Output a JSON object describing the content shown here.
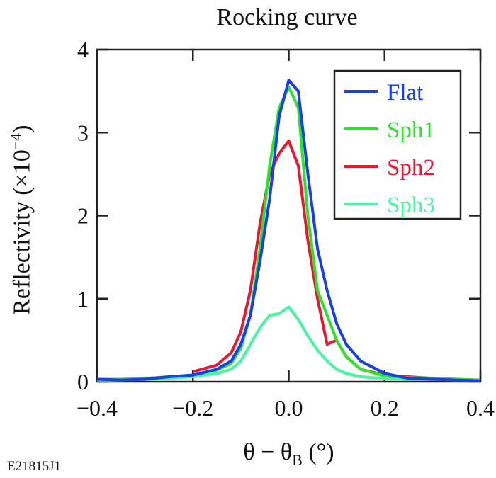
{
  "chart_data": {
    "type": "line",
    "title": "Rocking curve",
    "xlabel": {
      "main": "θ − θ",
      "sub": "B",
      "unit": " (°)"
    },
    "ylabel": {
      "main": "Reflectivity (×10",
      "sup": "−4",
      "end": ")"
    },
    "xlim": [
      -0.4,
      0.4
    ],
    "ylim": [
      0,
      4
    ],
    "xticks": [
      -0.4,
      -0.2,
      0.0,
      0.2,
      0.4
    ],
    "xtick_labels": [
      "−0.4",
      "−0.2",
      "0.0",
      "0.2",
      "0.4"
    ],
    "yticks": [
      0,
      1,
      2,
      3,
      4
    ],
    "ytick_labels": [
      "0",
      "1",
      "2",
      "3",
      "4"
    ],
    "grid": false,
    "legend_position": "top-right",
    "x": [
      -0.4,
      -0.35,
      -0.3,
      -0.25,
      -0.2,
      -0.15,
      -0.12,
      -0.1,
      -0.08,
      -0.06,
      -0.04,
      -0.02,
      0,
      0.02,
      0.04,
      0.06,
      0.08,
      0.1,
      0.12,
      0.15,
      0.2,
      0.25,
      0.3,
      0.35,
      0.4
    ],
    "series": [
      {
        "name": "Flat",
        "color": "#1a3fe6",
        "values": [
          0.03,
          0.02,
          0.03,
          0.06,
          0.08,
          0.15,
          0.25,
          0.45,
          0.8,
          1.45,
          2.2,
          3.2,
          3.63,
          3.5,
          2.5,
          1.6,
          1.1,
          0.7,
          0.45,
          0.25,
          0.1,
          0.04,
          0.03,
          0.02,
          0.01
        ]
      },
      {
        "name": "Sph1",
        "color": "#2fe02f",
        "values": [
          0.03,
          0.03,
          0.04,
          0.06,
          0.08,
          0.14,
          0.22,
          0.4,
          0.8,
          1.6,
          2.6,
          3.3,
          3.55,
          3.3,
          2.0,
          1.1,
          0.8,
          0.5,
          0.3,
          0.15,
          0.07,
          0.05,
          0.04,
          0.03,
          0.02
        ]
      },
      {
        "name": "Sph2",
        "color": "#e8182e",
        "values": [
          null,
          null,
          null,
          null,
          0.12,
          0.2,
          0.35,
          0.6,
          1.1,
          1.9,
          2.5,
          2.75,
          2.9,
          2.6,
          1.7,
          1.0,
          0.45,
          0.5,
          0.3,
          0.15,
          0.08,
          0.06,
          0.04,
          0.03,
          0.02
        ]
      },
      {
        "name": "Sph3",
        "color": "#45f5a0",
        "values": [
          0.02,
          0.02,
          0.03,
          0.04,
          0.06,
          0.1,
          0.15,
          0.25,
          0.45,
          0.65,
          0.8,
          0.82,
          0.9,
          0.75,
          0.55,
          0.38,
          0.25,
          0.15,
          0.1,
          0.06,
          0.04,
          0.03,
          0.03,
          0.02,
          0.02
        ]
      }
    ]
  },
  "figure_code": "E21815J1"
}
